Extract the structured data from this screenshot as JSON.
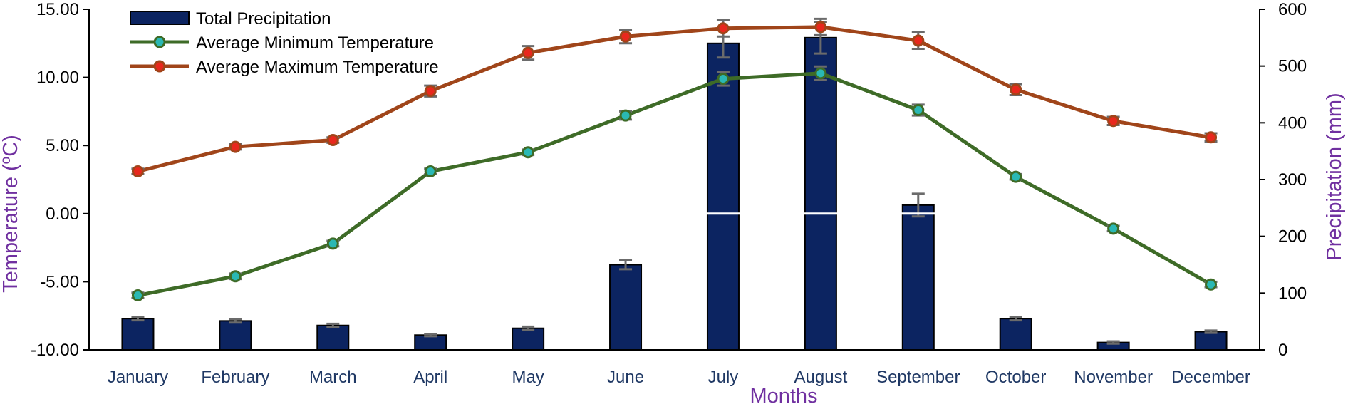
{
  "chart_data": {
    "type": "bar+line",
    "categories": [
      "January",
      "February",
      "March",
      "April",
      "May",
      "June",
      "July",
      "August",
      "September",
      "October",
      "November",
      "December"
    ],
    "xlabel": "Months",
    "ylabel_left": "Temperature (oC)",
    "ylabel_left_parts": [
      "Temperature (",
      "o",
      "C)"
    ],
    "ylabel_right": "Precipitation (mm)",
    "ylim_left": [
      -10,
      15
    ],
    "yticks_left": [
      "15.00",
      "10.00",
      "5.00",
      "0.00",
      "-5.00",
      "-10.00"
    ],
    "ylim_right": [
      0,
      600
    ],
    "yticks_right": [
      "600",
      "500",
      "400",
      "300",
      "200",
      "100",
      "0"
    ],
    "grid": false,
    "legend_position": "top-left",
    "bars": {
      "name": "Total Precipitation",
      "axis": "right",
      "color": "#0c2461",
      "values": [
        55,
        51,
        43,
        26,
        38,
        150,
        540,
        550,
        255,
        55,
        13,
        32
      ],
      "errors": [
        3,
        3,
        3,
        2,
        3,
        8,
        25,
        28,
        20,
        3,
        2,
        2
      ]
    },
    "series": [
      {
        "name": "Average Minimum Temperature",
        "axis": "left",
        "color": "#3e6b27",
        "marker_fill": "#2ab8b4",
        "values": [
          -6.0,
          -4.6,
          -2.2,
          3.1,
          4.5,
          7.2,
          9.9,
          10.3,
          7.6,
          2.7,
          -1.1,
          -5.2
        ],
        "errors": [
          0.2,
          0.2,
          0.2,
          0.2,
          0.2,
          0.3,
          0.5,
          0.5,
          0.4,
          0.2,
          0.2,
          0.2
        ]
      },
      {
        "name": "Average Maximum Temperature",
        "axis": "left",
        "color": "#a0451a",
        "marker_fill": "#e8281d",
        "values": [
          3.1,
          4.9,
          5.4,
          9.0,
          11.8,
          13.0,
          13.6,
          13.7,
          12.7,
          9.1,
          6.8,
          5.6
        ],
        "errors": [
          0.2,
          0.2,
          0.2,
          0.4,
          0.5,
          0.5,
          0.6,
          0.6,
          0.6,
          0.4,
          0.3,
          0.3
        ]
      }
    ]
  }
}
